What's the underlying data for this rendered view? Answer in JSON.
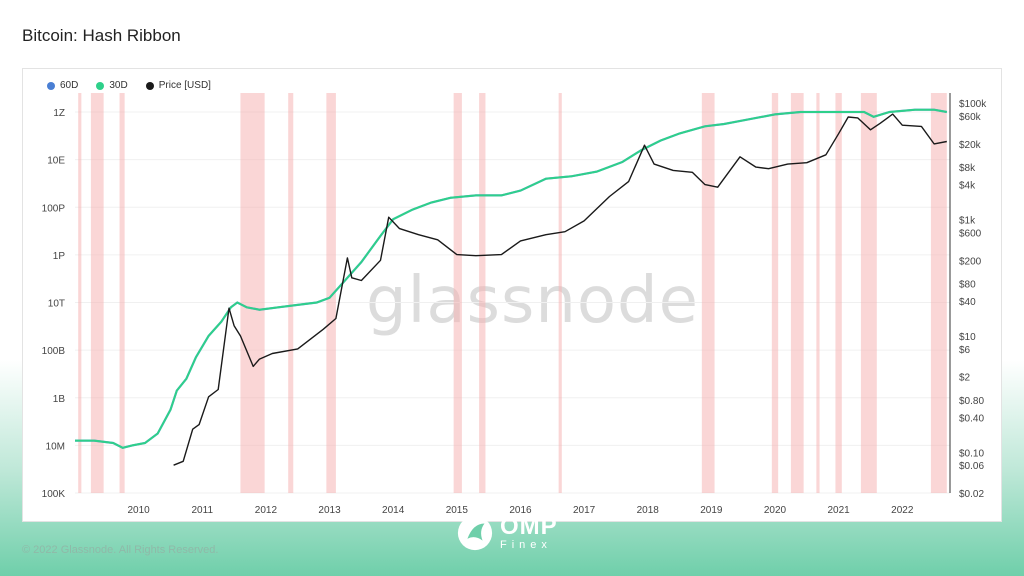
{
  "page": {
    "title": "Bitcoin: Hash Ribbon",
    "footer": "© 2022 Glassnode. All Rights Reserved.",
    "watermark": "glassnode"
  },
  "brand": {
    "name": "OMP",
    "sub": "Finex"
  },
  "colors": {
    "series_60d": "#4a7fd4",
    "series_30d": "#2ed08a",
    "price": "#1a1a1a",
    "capitulation_band": "#f5b5b5"
  },
  "chart_data": {
    "type": "line",
    "title": "Bitcoin: Hash Ribbon",
    "legend": [
      "60D",
      "30D",
      "Price [USD]"
    ],
    "legend_position": "top-left",
    "grid": true,
    "x_range": [
      2009.0,
      2022.75
    ],
    "x_ticks": [
      "2010",
      "2011",
      "2012",
      "2013",
      "2014",
      "2015",
      "2016",
      "2017",
      "2018",
      "2019",
      "2020",
      "2021",
      "2022"
    ],
    "y_left": {
      "scale": "log",
      "unit": "H/s",
      "range_log10": [
        17,
        33.3
      ],
      "tick_labels": [
        "100K",
        "10M",
        "1B",
        "100B",
        "10T",
        "1P",
        "100P",
        "10E",
        "1Z"
      ],
      "tick_log10": [
        5,
        7,
        9,
        11,
        13,
        15,
        17,
        19,
        21
      ]
    },
    "y_right": {
      "scale": "log",
      "unit": "USD",
      "range": [
        0.02,
        150000
      ],
      "tick_labels": [
        "$100k",
        "$60k",
        "$20k",
        "$8k",
        "$4k",
        "$1k",
        "$600",
        "$200",
        "$80",
        "$40",
        "$10",
        "$6",
        "$2",
        "$0.80",
        "$0.40",
        "$0.10",
        "$0.06",
        "$0.02"
      ],
      "tick_values": [
        100000,
        60000,
        20000,
        8000,
        4000,
        1000,
        600,
        200,
        80,
        40,
        10,
        6,
        2,
        0.8,
        0.4,
        0.1,
        0.06,
        0.02
      ]
    },
    "series": [
      {
        "name": "30D",
        "x": [
          2009.0,
          2009.3,
          2009.6,
          2009.75,
          2009.9,
          2010.1,
          2010.3,
          2010.5,
          2010.6,
          2010.75,
          2010.9,
          2011.1,
          2011.3,
          2011.45,
          2011.55,
          2011.7,
          2011.9,
          2012.2,
          2012.5,
          2012.8,
          2013.0,
          2013.2,
          2013.5,
          2013.8,
          2014.0,
          2014.3,
          2014.6,
          2014.9,
          2015.3,
          2015.7,
          2016.0,
          2016.4,
          2016.8,
          2017.2,
          2017.6,
          2017.9,
          2018.2,
          2018.5,
          2018.9,
          2019.2,
          2019.6,
          2020.0,
          2020.4,
          2020.8,
          2021.2,
          2021.4,
          2021.55,
          2021.8,
          2022.2,
          2022.5,
          2022.7
        ],
        "y": [
          7.2,
          7.2,
          7.1,
          6.9,
          7.0,
          7.1,
          7.5,
          8.5,
          9.3,
          9.8,
          10.7,
          11.6,
          12.2,
          12.8,
          13.0,
          12.8,
          12.7,
          12.8,
          12.9,
          13.0,
          13.2,
          13.8,
          14.7,
          15.8,
          16.5,
          16.9,
          17.2,
          17.4,
          17.5,
          17.5,
          17.7,
          18.2,
          18.3,
          18.5,
          18.9,
          19.4,
          19.8,
          20.1,
          20.4,
          20.5,
          20.7,
          20.9,
          21.0,
          21.0,
          21.0,
          21.0,
          20.8,
          21.0,
          21.1,
          21.1,
          21.0
        ]
      },
      {
        "name": "Price [USD]",
        "x": [
          2010.55,
          2010.7,
          2010.85,
          2010.95,
          2011.1,
          2011.25,
          2011.42,
          2011.5,
          2011.6,
          2011.8,
          2011.9,
          2012.1,
          2012.5,
          2012.9,
          2013.1,
          2013.28,
          2013.35,
          2013.5,
          2013.8,
          2013.93,
          2014.1,
          2014.4,
          2014.7,
          2015.0,
          2015.3,
          2015.7,
          2016.0,
          2016.4,
          2016.7,
          2017.0,
          2017.4,
          2017.7,
          2017.95,
          2018.1,
          2018.4,
          2018.7,
          2018.9,
          2019.1,
          2019.45,
          2019.7,
          2019.9,
          2020.2,
          2020.5,
          2020.8,
          2021.0,
          2021.15,
          2021.3,
          2021.5,
          2021.65,
          2021.85,
          2022.0,
          2022.3,
          2022.5,
          2022.7
        ],
        "y": [
          0.06,
          0.07,
          0.25,
          0.3,
          0.9,
          1.2,
          30,
          15,
          10,
          3,
          4,
          5,
          6,
          13,
          20,
          220,
          100,
          90,
          200,
          1100,
          700,
          550,
          450,
          250,
          240,
          250,
          430,
          550,
          620,
          950,
          2500,
          4500,
          19000,
          9000,
          7000,
          6500,
          4000,
          3600,
          12000,
          8000,
          7500,
          9000,
          9500,
          13000,
          30000,
          58000,
          56000,
          35000,
          45000,
          65000,
          42000,
          40000,
          20000,
          22000
        ]
      }
    ],
    "capitulation_periods": [
      [
        2009.05,
        2009.1
      ],
      [
        2009.25,
        2009.45
      ],
      [
        2009.7,
        2009.78
      ],
      [
        2011.6,
        2011.98
      ],
      [
        2012.35,
        2012.43
      ],
      [
        2012.95,
        2013.1
      ],
      [
        2014.95,
        2015.08
      ],
      [
        2015.35,
        2015.45
      ],
      [
        2016.6,
        2016.65
      ],
      [
        2018.85,
        2019.05
      ],
      [
        2019.95,
        2020.05
      ],
      [
        2020.25,
        2020.45
      ],
      [
        2020.65,
        2020.7
      ],
      [
        2020.95,
        2021.05
      ],
      [
        2021.35,
        2021.6
      ],
      [
        2022.45,
        2022.7
      ]
    ]
  }
}
